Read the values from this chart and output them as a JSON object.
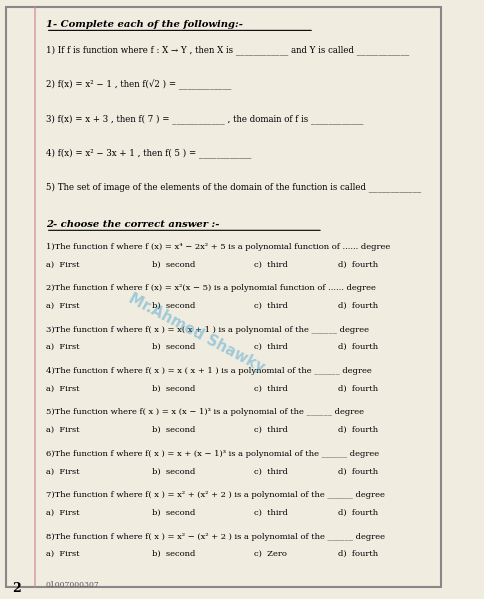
{
  "bg_color": "#f0ece0",
  "title1": "1- Complete each of the following:-",
  "section2": "2- choose the correct answer :-",
  "complete_questions": [
    "1) If f is function where f : X → Y , then X is ____________ and Y is called ____________",
    "2) f(x) = x² − 1 , then f(√2 ) = ____________",
    "3) f(x) = x + 3 , then f( 7 ) = ____________ , the domain of f is ____________",
    "4) f(x) = x² − 3x + 1 , then f( 5 ) = ____________",
    "5) The set of image of the elements of the domain of the function is called ____________"
  ],
  "mcq_questions": [
    {
      "text": "1)The function f where f (x) = x⁴ − 2x² + 5 is a polynomial function of ...... degree",
      "choices": [
        "a)  First",
        "b)  second",
        "c)  third",
        "d)  fourth"
      ]
    },
    {
      "text": "2)The function f where f (x) = x²(x − 5) is a polynomial function of ...... degree",
      "choices": [
        "a)  First",
        "b)  second",
        "c)  third",
        "d)  fourth"
      ]
    },
    {
      "text": "3)The function f where f( x ) = x( x + 1 ) is a polynomial of the ______ degree",
      "choices": [
        "a)  First",
        "b)  second",
        "c)  third",
        "d)  fourth"
      ]
    },
    {
      "text": "4)The function f where f( x ) = x ( x + 1 ) is a polynomial of the ______ degree",
      "choices": [
        "a)  First",
        "b)  second",
        "c)  third",
        "d)  fourth"
      ]
    },
    {
      "text": "5)The function where f( x ) = x (x − 1)³ is a polynomial of the ______ degree",
      "choices": [
        "a)  First",
        "b)  second",
        "c)  third",
        "d)  fourth"
      ]
    },
    {
      "text": "6)The function f where f( x ) = x + (x − 1)³ is a polynomial of the ______ degree",
      "choices": [
        "a)  First",
        "b)  second",
        "c)  third",
        "d)  fourth"
      ]
    },
    {
      "text": "7)The function f where f( x ) = x² + (x² + 2 ) is a polynomial of the ______ degree",
      "choices": [
        "a)  First",
        "b)  second",
        "c)  third",
        "d)  fourth"
      ]
    },
    {
      "text": "8)The function f where f( x ) = x² − (x² + 2 ) is a polynomial of the ______ degree",
      "choices": [
        "a)  First",
        "b)  second",
        "c)  Zero",
        "d)  fourth"
      ]
    }
  ],
  "footer_text": "01007000307",
  "watermark": "Mr.Ahmed Shawky"
}
